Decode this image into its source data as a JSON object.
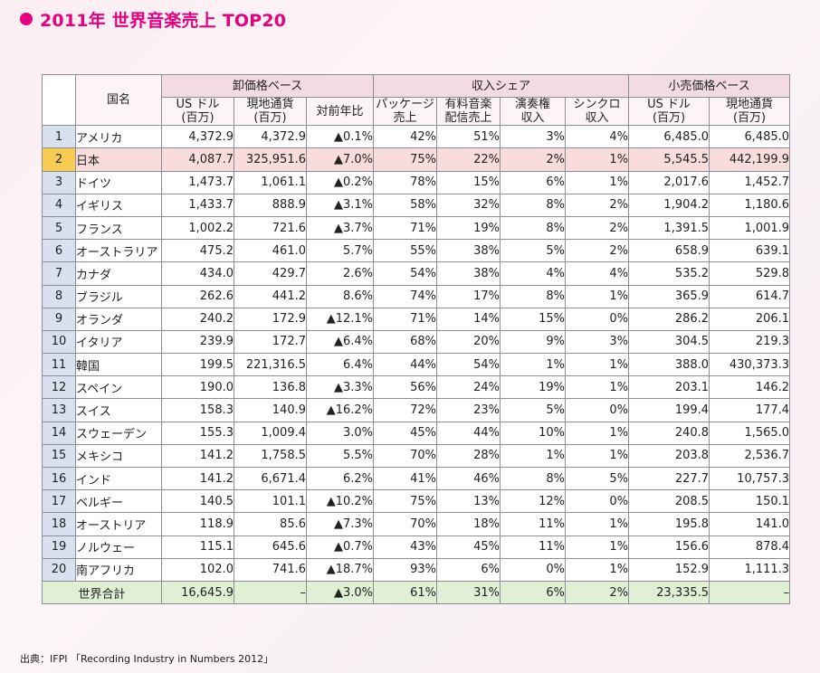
{
  "title": "2011年 世界音楽売上 TOP20",
  "headers": {
    "country": "国名",
    "group_wholesale": "卸価格ベース",
    "group_revenue": "収入シェア",
    "group_retail": "小売価格ベース",
    "wh_usd_1": "US ドル",
    "wh_usd_2": "(百万)",
    "wh_local_1": "現地通貨",
    "wh_local_2": "(百万)",
    "wh_yoy": "対前年比",
    "rev_pkg_1": "パッケージ",
    "rev_pkg_2": "売上",
    "rev_dl_1": "有料音楽",
    "rev_dl_2": "配信売上",
    "rev_perf_1": "演奏権",
    "rev_perf_2": "収入",
    "rev_sync_1": "シンクロ",
    "rev_sync_2": "収入",
    "rt_usd_1": "US ドル",
    "rt_usd_2": "(百万)",
    "rt_local_1": "現地通貨",
    "rt_local_2": "(百万)"
  },
  "rows": [
    {
      "rank": "1",
      "country": "アメリカ",
      "wh_usd": "4,372.9",
      "wh_local": "4,372.9",
      "yoy": "▲0.1%",
      "pkg": "42%",
      "dl": "51%",
      "perf": "3%",
      "sync": "4%",
      "rt_usd": "6,485.0",
      "rt_local": "6,485.0"
    },
    {
      "rank": "2",
      "country": "日本",
      "wh_usd": "4,087.7",
      "wh_local": "325,951.6",
      "yoy": "▲7.0%",
      "pkg": "75%",
      "dl": "22%",
      "perf": "2%",
      "sync": "1%",
      "rt_usd": "5,545.5",
      "rt_local": "442,199.9"
    },
    {
      "rank": "3",
      "country": "ドイツ",
      "wh_usd": "1,473.7",
      "wh_local": "1,061.1",
      "yoy": "▲0.2%",
      "pkg": "78%",
      "dl": "15%",
      "perf": "6%",
      "sync": "1%",
      "rt_usd": "2,017.6",
      "rt_local": "1,452.7"
    },
    {
      "rank": "4",
      "country": "イギリス",
      "wh_usd": "1,433.7",
      "wh_local": "888.9",
      "yoy": "▲3.1%",
      "pkg": "58%",
      "dl": "32%",
      "perf": "8%",
      "sync": "2%",
      "rt_usd": "1,904.2",
      "rt_local": "1,180.6"
    },
    {
      "rank": "5",
      "country": "フランス",
      "wh_usd": "1,002.2",
      "wh_local": "721.6",
      "yoy": "▲3.7%",
      "pkg": "71%",
      "dl": "19%",
      "perf": "8%",
      "sync": "2%",
      "rt_usd": "1,391.5",
      "rt_local": "1,001.9"
    },
    {
      "rank": "6",
      "country": "オーストラリア",
      "wh_usd": "475.2",
      "wh_local": "461.0",
      "yoy": "5.7%",
      "pkg": "55%",
      "dl": "38%",
      "perf": "5%",
      "sync": "2%",
      "rt_usd": "658.9",
      "rt_local": "639.1"
    },
    {
      "rank": "7",
      "country": "カナダ",
      "wh_usd": "434.0",
      "wh_local": "429.7",
      "yoy": "2.6%",
      "pkg": "54%",
      "dl": "38%",
      "perf": "4%",
      "sync": "4%",
      "rt_usd": "535.2",
      "rt_local": "529.8"
    },
    {
      "rank": "8",
      "country": "ブラジル",
      "wh_usd": "262.6",
      "wh_local": "441.2",
      "yoy": "8.6%",
      "pkg": "74%",
      "dl": "17%",
      "perf": "8%",
      "sync": "1%",
      "rt_usd": "365.9",
      "rt_local": "614.7"
    },
    {
      "rank": "9",
      "country": "オランダ",
      "wh_usd": "240.2",
      "wh_local": "172.9",
      "yoy": "▲12.1%",
      "pkg": "71%",
      "dl": "14%",
      "perf": "15%",
      "sync": "0%",
      "rt_usd": "286.2",
      "rt_local": "206.1"
    },
    {
      "rank": "10",
      "country": "イタリア",
      "wh_usd": "239.9",
      "wh_local": "172.7",
      "yoy": "▲6.4%",
      "pkg": "68%",
      "dl": "20%",
      "perf": "9%",
      "sync": "3%",
      "rt_usd": "304.5",
      "rt_local": "219.3"
    },
    {
      "rank": "11",
      "country": "韓国",
      "wh_usd": "199.5",
      "wh_local": "221,316.5",
      "yoy": "6.4%",
      "pkg": "44%",
      "dl": "54%",
      "perf": "1%",
      "sync": "1%",
      "rt_usd": "388.0",
      "rt_local": "430,373.3"
    },
    {
      "rank": "12",
      "country": "スペイン",
      "wh_usd": "190.0",
      "wh_local": "136.8",
      "yoy": "▲3.3%",
      "pkg": "56%",
      "dl": "24%",
      "perf": "19%",
      "sync": "1%",
      "rt_usd": "203.1",
      "rt_local": "146.2"
    },
    {
      "rank": "13",
      "country": "スイス",
      "wh_usd": "158.3",
      "wh_local": "140.9",
      "yoy": "▲16.2%",
      "pkg": "72%",
      "dl": "23%",
      "perf": "5%",
      "sync": "0%",
      "rt_usd": "199.4",
      "rt_local": "177.4"
    },
    {
      "rank": "14",
      "country": "スウェーデン",
      "wh_usd": "155.3",
      "wh_local": "1,009.4",
      "yoy": "3.0%",
      "pkg": "45%",
      "dl": "44%",
      "perf": "10%",
      "sync": "1%",
      "rt_usd": "240.8",
      "rt_local": "1,565.0"
    },
    {
      "rank": "15",
      "country": "メキシコ",
      "wh_usd": "141.2",
      "wh_local": "1,758.5",
      "yoy": "5.5%",
      "pkg": "70%",
      "dl": "28%",
      "perf": "1%",
      "sync": "1%",
      "rt_usd": "203.8",
      "rt_local": "2,536.7"
    },
    {
      "rank": "16",
      "country": "インド",
      "wh_usd": "141.2",
      "wh_local": "6,671.4",
      "yoy": "6.2%",
      "pkg": "41%",
      "dl": "46%",
      "perf": "8%",
      "sync": "5%",
      "rt_usd": "227.7",
      "rt_local": "10,757.3"
    },
    {
      "rank": "17",
      "country": "ベルギー",
      "wh_usd": "140.5",
      "wh_local": "101.1",
      "yoy": "▲10.2%",
      "pkg": "75%",
      "dl": "13%",
      "perf": "12%",
      "sync": "0%",
      "rt_usd": "208.5",
      "rt_local": "150.1"
    },
    {
      "rank": "18",
      "country": "オーストリア",
      "wh_usd": "118.9",
      "wh_local": "85.6",
      "yoy": "▲7.3%",
      "pkg": "70%",
      "dl": "18%",
      "perf": "11%",
      "sync": "1%",
      "rt_usd": "195.8",
      "rt_local": "141.0"
    },
    {
      "rank": "19",
      "country": "ノルウェー",
      "wh_usd": "115.1",
      "wh_local": "645.6",
      "yoy": "▲0.7%",
      "pkg": "43%",
      "dl": "45%",
      "perf": "11%",
      "sync": "1%",
      "rt_usd": "156.6",
      "rt_local": "878.4"
    },
    {
      "rank": "20",
      "country": "南アフリカ",
      "wh_usd": "102.0",
      "wh_local": "741.6",
      "yoy": "▲18.7%",
      "pkg": "93%",
      "dl": "6%",
      "perf": "0%",
      "sync": "1%",
      "rt_usd": "152.9",
      "rt_local": "1,111.3"
    }
  ],
  "total": {
    "label": "世界合計",
    "wh_usd": "16,645.9",
    "wh_local": "–",
    "yoy": "▲3.0%",
    "pkg": "61%",
    "dl": "31%",
    "perf": "6%",
    "sync": "2%",
    "rt_usd": "23,335.5",
    "rt_local": "–"
  },
  "footnote": "出典：IFPI 「Recording Industry in Numbers 2012」",
  "colors": {
    "accent": "#e4007f",
    "header_group": "#f2dbe3",
    "rank_cell": "#d9e1f0",
    "highlight_row": "#f9dcdc",
    "highlight_rank": "#f7cc50",
    "total_row": "#dff0d4"
  }
}
